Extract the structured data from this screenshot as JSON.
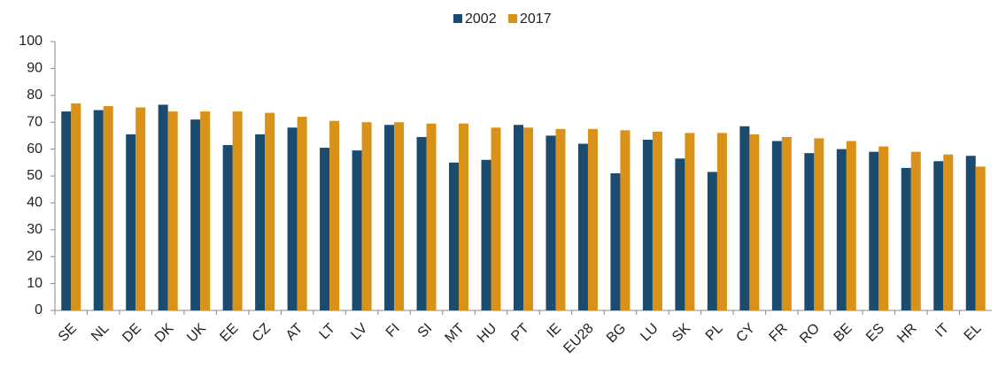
{
  "chart_data": {
    "type": "bar",
    "categories": [
      "SE",
      "NL",
      "DE",
      "DK",
      "UK",
      "EE",
      "CZ",
      "AT",
      "LT",
      "LV",
      "FI",
      "SI",
      "MT",
      "HU",
      "PT",
      "IE",
      "EU28",
      "BG",
      "LU",
      "SK",
      "PL",
      "CY",
      "FR",
      "RO",
      "BE",
      "ES",
      "HR",
      "IT",
      "EL"
    ],
    "series": [
      {
        "name": "2002",
        "color": "#1b4b6f",
        "values": [
          74,
          74.5,
          65.5,
          76.5,
          71,
          61.5,
          65.5,
          68,
          60.5,
          59.5,
          69,
          64.5,
          55,
          56,
          69,
          65,
          62,
          51,
          63.5,
          56.5,
          51.5,
          68.5,
          63,
          58.5,
          60,
          59,
          53,
          55.5,
          57.5
        ]
      },
      {
        "name": "2017",
        "color": "#d99219",
        "values": [
          77,
          76,
          75.5,
          74,
          74,
          74,
          73.5,
          72,
          70.5,
          70,
          70,
          69.5,
          69.5,
          68,
          68,
          67.5,
          67.5,
          67,
          66.5,
          66,
          66,
          65.5,
          64.5,
          64,
          63,
          61,
          59,
          58,
          53.5
        ]
      }
    ],
    "ylim": [
      0,
      100
    ],
    "yticks": [
      0,
      10,
      20,
      30,
      40,
      50,
      60,
      70,
      80,
      90,
      100
    ],
    "grid": false,
    "legend": "top"
  }
}
